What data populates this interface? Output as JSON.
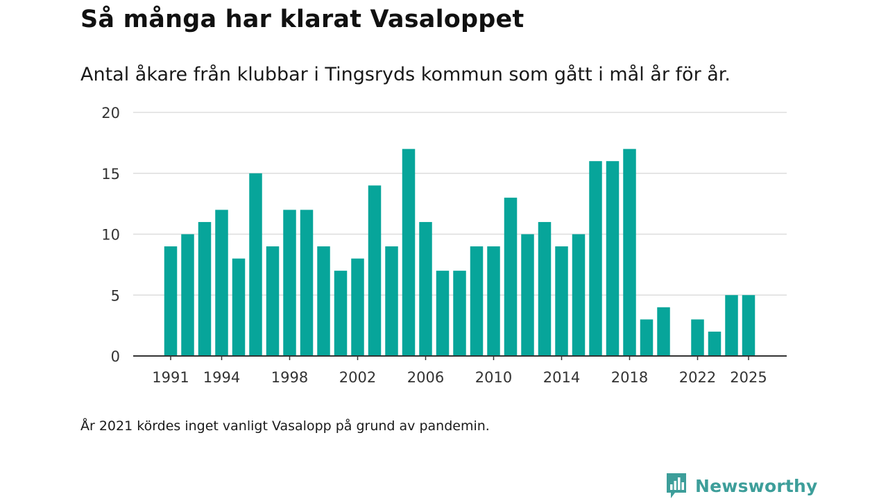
{
  "header": {
    "title": "Så många har klarat Vasaloppet",
    "subtitle": "Antal åkare från klubbar i Tingsryds kommun som gått i mål år för år."
  },
  "footer": {
    "note": "År 2021 kördes inget vanligt Vasalopp på grund av pandemin.",
    "brand": "Newsworthy",
    "brand_icon": "bar-chart-speech-bubble-icon"
  },
  "colors": {
    "bar": "#07a59a",
    "grid": "#dddddd",
    "axis": "#333333",
    "brand": "#3d9e9a"
  },
  "chart_data": {
    "type": "bar",
    "title": "Så många har klarat Vasaloppet",
    "xlabel": "",
    "ylabel": "",
    "ylim": [
      0,
      20
    ],
    "yticks": [
      0,
      5,
      10,
      15,
      20
    ],
    "xticks": [
      "1991",
      "1994",
      "1998",
      "2002",
      "2006",
      "2010",
      "2014",
      "2018",
      "2022",
      "2025"
    ],
    "grid": true,
    "categories": [
      "1991",
      "1992",
      "1993",
      "1994",
      "1995",
      "1996",
      "1997",
      "1998",
      "1999",
      "2000",
      "2001",
      "2002",
      "2003",
      "2004",
      "2005",
      "2006",
      "2007",
      "2008",
      "2009",
      "2010",
      "2011",
      "2012",
      "2013",
      "2014",
      "2015",
      "2016",
      "2017",
      "2018",
      "2019",
      "2020",
      "2021",
      "2022",
      "2023",
      "2024",
      "2025"
    ],
    "values": [
      9,
      10,
      11,
      12,
      8,
      15,
      9,
      12,
      12,
      9,
      7,
      8,
      14,
      9,
      17,
      11,
      7,
      7,
      9,
      9,
      13,
      10,
      11,
      9,
      10,
      16,
      16,
      17,
      3,
      4,
      0,
      3,
      2,
      5,
      5
    ]
  }
}
